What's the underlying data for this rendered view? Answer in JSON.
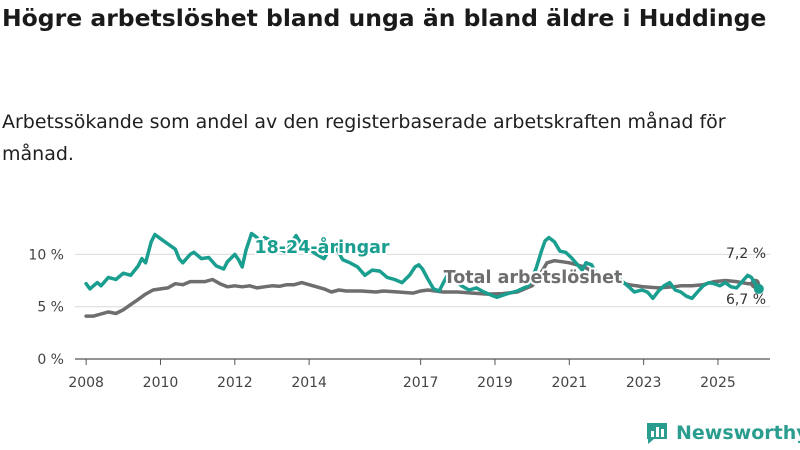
{
  "title": "Högre arbetslöshet bland unga än bland äldre i Huddinge",
  "subtitle": "Arbetssökande som andel av den registerbaserade arbetskraften månad för månad.",
  "brand": {
    "name": "Newsworthy",
    "icon": "bar-chart-logo-icon",
    "color": "#2a9d8f"
  },
  "chart_data": {
    "type": "line",
    "xlabel": "",
    "ylabel": "",
    "ylim": [
      0,
      13
    ],
    "xlim": [
      2007.7,
      2026.4
    ],
    "grid": true,
    "y_ticks": [
      0,
      5,
      10
    ],
    "y_tick_labels": [
      "0 %",
      "5 %",
      "10 %"
    ],
    "x_ticks": [
      2008,
      2010,
      2012,
      2014,
      2017,
      2019,
      2021,
      2023,
      2025
    ],
    "x_tick_labels": [
      "2008",
      "2010",
      "2012",
      "2014",
      "2017",
      "2019",
      "2021",
      "2023",
      "2025"
    ],
    "series": [
      {
        "name": "Total arbetslöshet",
        "label": "Total arbetslöshet",
        "color": "#6e6e6e",
        "end_label": "7,2 %",
        "end_value": 7.2,
        "points": [
          [
            2008.0,
            4.1
          ],
          [
            2008.2,
            4.1
          ],
          [
            2008.4,
            4.3
          ],
          [
            2008.6,
            4.5
          ],
          [
            2008.8,
            4.35
          ],
          [
            2009.0,
            4.7
          ],
          [
            2009.2,
            5.2
          ],
          [
            2009.4,
            5.7
          ],
          [
            2009.6,
            6.2
          ],
          [
            2009.8,
            6.6
          ],
          [
            2010.0,
            6.7
          ],
          [
            2010.2,
            6.8
          ],
          [
            2010.4,
            7.2
          ],
          [
            2010.6,
            7.1
          ],
          [
            2010.8,
            7.4
          ],
          [
            2011.0,
            7.4
          ],
          [
            2011.2,
            7.4
          ],
          [
            2011.4,
            7.6
          ],
          [
            2011.6,
            7.2
          ],
          [
            2011.8,
            6.9
          ],
          [
            2012.0,
            7.0
          ],
          [
            2012.2,
            6.9
          ],
          [
            2012.4,
            7.0
          ],
          [
            2012.6,
            6.8
          ],
          [
            2012.8,
            6.9
          ],
          [
            2013.0,
            7.0
          ],
          [
            2013.2,
            6.95
          ],
          [
            2013.4,
            7.1
          ],
          [
            2013.6,
            7.1
          ],
          [
            2013.8,
            7.3
          ],
          [
            2014.0,
            7.1
          ],
          [
            2014.2,
            6.9
          ],
          [
            2014.4,
            6.7
          ],
          [
            2014.6,
            6.4
          ],
          [
            2014.8,
            6.6
          ],
          [
            2015.0,
            6.5
          ],
          [
            2015.4,
            6.5
          ],
          [
            2015.8,
            6.4
          ],
          [
            2016.0,
            6.5
          ],
          [
            2016.4,
            6.4
          ],
          [
            2016.8,
            6.3
          ],
          [
            2017.0,
            6.5
          ],
          [
            2017.2,
            6.6
          ],
          [
            2017.6,
            6.4
          ],
          [
            2018.0,
            6.4
          ],
          [
            2018.4,
            6.3
          ],
          [
            2018.8,
            6.2
          ],
          [
            2019.2,
            6.25
          ],
          [
            2019.6,
            6.4
          ],
          [
            2020.0,
            7.0
          ],
          [
            2020.2,
            8.0
          ],
          [
            2020.4,
            9.2
          ],
          [
            2020.6,
            9.4
          ],
          [
            2020.8,
            9.3
          ],
          [
            2021.0,
            9.2
          ],
          [
            2021.2,
            9.0
          ],
          [
            2021.4,
            8.8
          ],
          [
            2021.6,
            8.4
          ],
          [
            2021.8,
            8.0
          ],
          [
            2022.0,
            7.6
          ],
          [
            2022.3,
            7.4
          ],
          [
            2022.6,
            7.1
          ],
          [
            2023.0,
            6.9
          ],
          [
            2023.4,
            6.8
          ],
          [
            2023.8,
            6.9
          ],
          [
            2024.0,
            7.0
          ],
          [
            2024.3,
            7.0
          ],
          [
            2024.6,
            7.1
          ],
          [
            2024.9,
            7.4
          ],
          [
            2025.2,
            7.5
          ],
          [
            2025.5,
            7.4
          ],
          [
            2025.8,
            7.2
          ],
          [
            2026.0,
            7.2
          ]
        ]
      },
      {
        "name": "18-24-åringar",
        "label": "18-24-åringar",
        "color": "#1a9e8f",
        "end_label": "6,7 %",
        "end_value": 6.7,
        "points": [
          [
            2008.0,
            7.2
          ],
          [
            2008.1,
            6.7
          ],
          [
            2008.3,
            7.3
          ],
          [
            2008.4,
            7.0
          ],
          [
            2008.6,
            7.8
          ],
          [
            2008.8,
            7.6
          ],
          [
            2009.0,
            8.2
          ],
          [
            2009.2,
            8.0
          ],
          [
            2009.4,
            8.9
          ],
          [
            2009.5,
            9.6
          ],
          [
            2009.6,
            9.2
          ],
          [
            2009.75,
            11.2
          ],
          [
            2009.85,
            11.9
          ],
          [
            2010.0,
            11.5
          ],
          [
            2010.2,
            11.0
          ],
          [
            2010.4,
            10.5
          ],
          [
            2010.5,
            9.6
          ],
          [
            2010.6,
            9.2
          ],
          [
            2010.8,
            10.0
          ],
          [
            2010.9,
            10.2
          ],
          [
            2011.1,
            9.6
          ],
          [
            2011.3,
            9.7
          ],
          [
            2011.5,
            8.9
          ],
          [
            2011.7,
            8.6
          ],
          [
            2011.8,
            9.3
          ],
          [
            2012.0,
            10.0
          ],
          [
            2012.1,
            9.5
          ],
          [
            2012.2,
            8.8
          ],
          [
            2012.3,
            10.4
          ],
          [
            2012.45,
            12.0
          ],
          [
            2012.6,
            11.6
          ],
          [
            2012.7,
            10.9
          ],
          [
            2012.8,
            11.6
          ],
          [
            2013.0,
            11.3
          ],
          [
            2013.2,
            10.5
          ],
          [
            2013.4,
            10.2
          ],
          [
            2013.5,
            11.0
          ],
          [
            2013.65,
            11.8
          ],
          [
            2013.8,
            10.9
          ],
          [
            2014.0,
            10.5
          ],
          [
            2014.2,
            10.0
          ],
          [
            2014.4,
            9.6
          ],
          [
            2014.55,
            10.5
          ],
          [
            2014.7,
            10.8
          ],
          [
            2014.9,
            9.5
          ],
          [
            2015.1,
            9.2
          ],
          [
            2015.3,
            8.8
          ],
          [
            2015.5,
            8.0
          ],
          [
            2015.7,
            8.5
          ],
          [
            2015.9,
            8.4
          ],
          [
            2016.1,
            7.8
          ],
          [
            2016.3,
            7.6
          ],
          [
            2016.5,
            7.3
          ],
          [
            2016.7,
            8.0
          ],
          [
            2016.85,
            8.8
          ],
          [
            2016.95,
            9.0
          ],
          [
            2017.05,
            8.6
          ],
          [
            2017.2,
            7.6
          ],
          [
            2017.35,
            6.7
          ],
          [
            2017.5,
            6.5
          ],
          [
            2017.6,
            7.2
          ],
          [
            2017.75,
            8.2
          ],
          [
            2017.9,
            7.6
          ],
          [
            2018.1,
            7.0
          ],
          [
            2018.3,
            6.6
          ],
          [
            2018.5,
            6.8
          ],
          [
            2018.7,
            6.4
          ],
          [
            2018.9,
            6.1
          ],
          [
            2019.05,
            5.9
          ],
          [
            2019.3,
            6.2
          ],
          [
            2019.6,
            6.5
          ],
          [
            2019.9,
            7.0
          ],
          [
            2020.1,
            8.6
          ],
          [
            2020.25,
            10.3
          ],
          [
            2020.35,
            11.3
          ],
          [
            2020.45,
            11.6
          ],
          [
            2020.6,
            11.2
          ],
          [
            2020.75,
            10.3
          ],
          [
            2020.9,
            10.2
          ],
          [
            2021.05,
            9.7
          ],
          [
            2021.2,
            9.1
          ],
          [
            2021.35,
            8.5
          ],
          [
            2021.45,
            9.2
          ],
          [
            2021.6,
            9.0
          ],
          [
            2021.75,
            8.0
          ],
          [
            2021.9,
            7.6
          ],
          [
            2022.1,
            7.8
          ],
          [
            2022.25,
            8.1
          ],
          [
            2022.4,
            7.5
          ],
          [
            2022.6,
            6.9
          ],
          [
            2022.75,
            6.4
          ],
          [
            2022.95,
            6.6
          ],
          [
            2023.1,
            6.4
          ],
          [
            2023.25,
            5.8
          ],
          [
            2023.4,
            6.5
          ],
          [
            2023.55,
            7.0
          ],
          [
            2023.7,
            7.3
          ],
          [
            2023.85,
            6.6
          ],
          [
            2024.0,
            6.4
          ],
          [
            2024.15,
            6.0
          ],
          [
            2024.3,
            5.8
          ],
          [
            2024.45,
            6.4
          ],
          [
            2024.6,
            7.0
          ],
          [
            2024.75,
            7.3
          ],
          [
            2024.9,
            7.2
          ],
          [
            2025.05,
            7.0
          ],
          [
            2025.2,
            7.3
          ],
          [
            2025.35,
            6.9
          ],
          [
            2025.5,
            6.8
          ],
          [
            2025.65,
            7.4
          ],
          [
            2025.8,
            8.0
          ],
          [
            2025.9,
            7.8
          ],
          [
            2026.0,
            7.2
          ],
          [
            2026.1,
            6.7
          ]
        ]
      }
    ]
  }
}
